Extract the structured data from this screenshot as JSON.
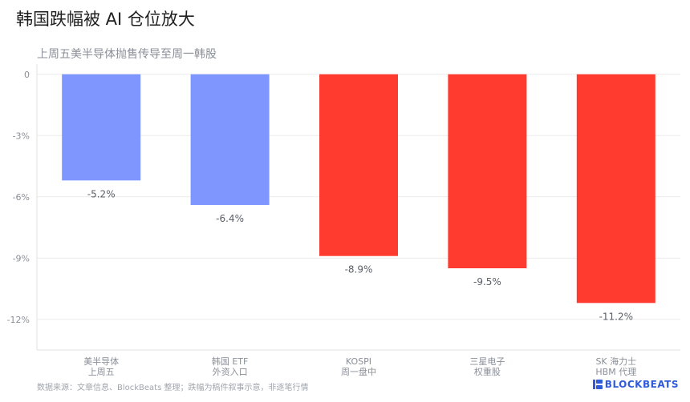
{
  "title": "韩国跌幅被 AI 仓位放大",
  "subtitle": "上周五美半导体抛售传导至周一韩股",
  "footnote": "数据来源：文章信息、BlockBeats 整理；跌幅为稿件叙事示意，非逐笔行情",
  "brand": {
    "name": "BLOCKBEATS",
    "icon": "blockbeats-logo-icon",
    "color": "#2f5bd8"
  },
  "colors": {
    "us_bar": "#7f95ff",
    "kr_bar": "#ff3b30",
    "grid": "#ececec",
    "tick_text": "#8a8f98",
    "label_text": "#5b6068"
  },
  "chart_data": {
    "type": "bar",
    "categories": [
      [
        "美半导体",
        "上周五"
      ],
      [
        "韩国 ETF",
        "外资入口"
      ],
      [
        "KOSPI",
        "周一盘中"
      ],
      [
        "三星电子",
        "权重股"
      ],
      [
        "SK 海力士",
        "HBM 代理"
      ]
    ],
    "values": [
      -5.2,
      -6.4,
      -8.9,
      -9.5,
      -11.2
    ],
    "data_labels": [
      "-5.2%",
      "-6.4%",
      "-8.9%",
      "-9.5%",
      "-11.2%"
    ],
    "bar_colors": [
      "#7f95ff",
      "#7f95ff",
      "#ff3b30",
      "#ff3b30",
      "#ff3b30"
    ],
    "y_ticks": [
      0,
      -3,
      -6,
      -9,
      -12
    ],
    "y_tick_labels": [
      "0",
      "-3%",
      "-6%",
      "-9%",
      "-12%"
    ],
    "ylim": [
      -13.5,
      0.5
    ],
    "grid": true,
    "title": "韩国跌幅被 AI 仓位放大",
    "xlabel": "",
    "ylabel": ""
  }
}
